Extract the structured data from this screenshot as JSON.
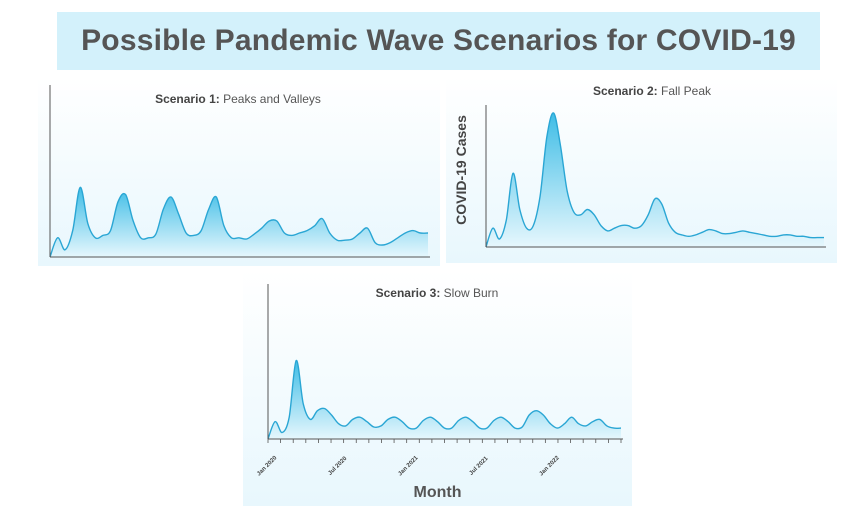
{
  "title": "Possible Pandemic Wave Scenarios for COVID-19",
  "ylabel": "COVID-19 Cases",
  "xlabel": "Month",
  "colors": {
    "banner": "#d3f1fb",
    "panel_bg": "#e8f7fd",
    "line": "#2aa6d4",
    "fill_top": "#3fbde6",
    "fill_bottom": "#e6f7fd"
  },
  "chart_data": [
    {
      "type": "area",
      "title_bold": "Scenario 1:",
      "title_rest": " Peaks and Valleys",
      "ylim": [
        0,
        10
      ],
      "x": [
        0,
        2,
        4,
        6,
        8,
        10,
        12,
        14,
        16,
        18,
        20,
        22,
        24,
        26,
        28,
        30,
        32,
        34,
        36,
        38,
        40,
        42,
        44,
        46,
        48,
        50,
        52,
        54,
        56,
        58,
        60,
        62,
        64,
        66,
        68,
        70,
        72,
        74,
        76,
        78,
        80,
        82,
        84,
        86,
        88,
        90,
        92,
        94,
        96,
        98,
        100
      ],
      "values": [
        0,
        1.6,
        0.6,
        2.2,
        5.8,
        2.8,
        1.6,
        1.8,
        2.2,
        4.6,
        5.2,
        3.0,
        1.6,
        1.6,
        1.9,
        4.0,
        5.0,
        3.6,
        2.0,
        1.8,
        2.2,
        4.0,
        5.0,
        2.6,
        1.6,
        1.6,
        1.5,
        1.9,
        2.4,
        3.0,
        3.0,
        2.0,
        1.8,
        2.0,
        2.2,
        2.6,
        3.2,
        2.0,
        1.4,
        1.4,
        1.5,
        2.0,
        2.4,
        1.2,
        1.0,
        1.2,
        1.6,
        2.0,
        2.2,
        2.0,
        2.0
      ]
    },
    {
      "type": "area",
      "title_bold": "Scenario 2:",
      "title_rest": " Fall Peak",
      "ylim": [
        0,
        10
      ],
      "x": [
        0,
        2,
        4,
        6,
        8,
        10,
        12,
        14,
        16,
        18,
        20,
        22,
        24,
        26,
        28,
        30,
        32,
        34,
        36,
        38,
        40,
        42,
        44,
        46,
        48,
        50,
        52,
        54,
        56,
        58,
        60,
        62,
        64,
        66,
        68,
        70,
        72,
        74,
        76,
        78,
        80,
        82,
        84,
        86,
        88,
        90,
        92,
        94,
        96,
        98,
        100
      ],
      "values": [
        0,
        1.4,
        0.6,
        2.0,
        5.5,
        2.8,
        1.4,
        1.6,
        3.8,
        8.2,
        10.0,
        7.6,
        4.2,
        2.6,
        2.4,
        2.8,
        2.4,
        1.6,
        1.2,
        1.4,
        1.6,
        1.6,
        1.4,
        1.6,
        2.4,
        3.6,
        3.2,
        1.8,
        1.1,
        0.9,
        0.8,
        0.9,
        1.1,
        1.3,
        1.2,
        1.0,
        1.0,
        1.1,
        1.2,
        1.1,
        1.0,
        0.9,
        0.8,
        0.8,
        0.9,
        0.9,
        0.8,
        0.8,
        0.7,
        0.7,
        0.7
      ]
    },
    {
      "type": "area",
      "title_bold": "Scenario 3:",
      "title_rest": " Slow Burn",
      "ylim": [
        0,
        10
      ],
      "x": [
        0,
        2,
        4,
        6,
        8,
        10,
        12,
        14,
        16,
        18,
        20,
        22,
        24,
        26,
        28,
        30,
        32,
        34,
        36,
        38,
        40,
        42,
        44,
        46,
        48,
        50,
        52,
        54,
        56,
        58,
        60,
        62,
        64,
        66,
        68,
        70,
        72,
        74,
        76,
        78,
        80,
        82,
        84,
        86,
        88,
        90,
        92,
        94,
        96,
        98,
        100
      ],
      "values": [
        0,
        1.6,
        0.6,
        2.0,
        7.2,
        3.2,
        1.8,
        2.6,
        2.8,
        2.2,
        1.4,
        1.2,
        1.8,
        2.0,
        1.6,
        1.1,
        1.2,
        1.8,
        2.0,
        1.6,
        1.0,
        1.0,
        1.7,
        2.0,
        1.6,
        1.0,
        1.0,
        1.7,
        2.0,
        1.6,
        1.0,
        1.0,
        1.7,
        2.0,
        1.6,
        1.0,
        1.1,
        2.2,
        2.6,
        2.2,
        1.4,
        1.0,
        1.4,
        2.0,
        1.4,
        1.2,
        1.6,
        1.8,
        1.2,
        1.0,
        1.0
      ],
      "tick_labels": [
        "Jan 2020",
        "Jul 2020",
        "Jan 2021",
        "Jul 2021",
        "Jan 2022"
      ],
      "tick_positions": [
        0,
        20,
        40,
        60,
        80
      ]
    }
  ]
}
